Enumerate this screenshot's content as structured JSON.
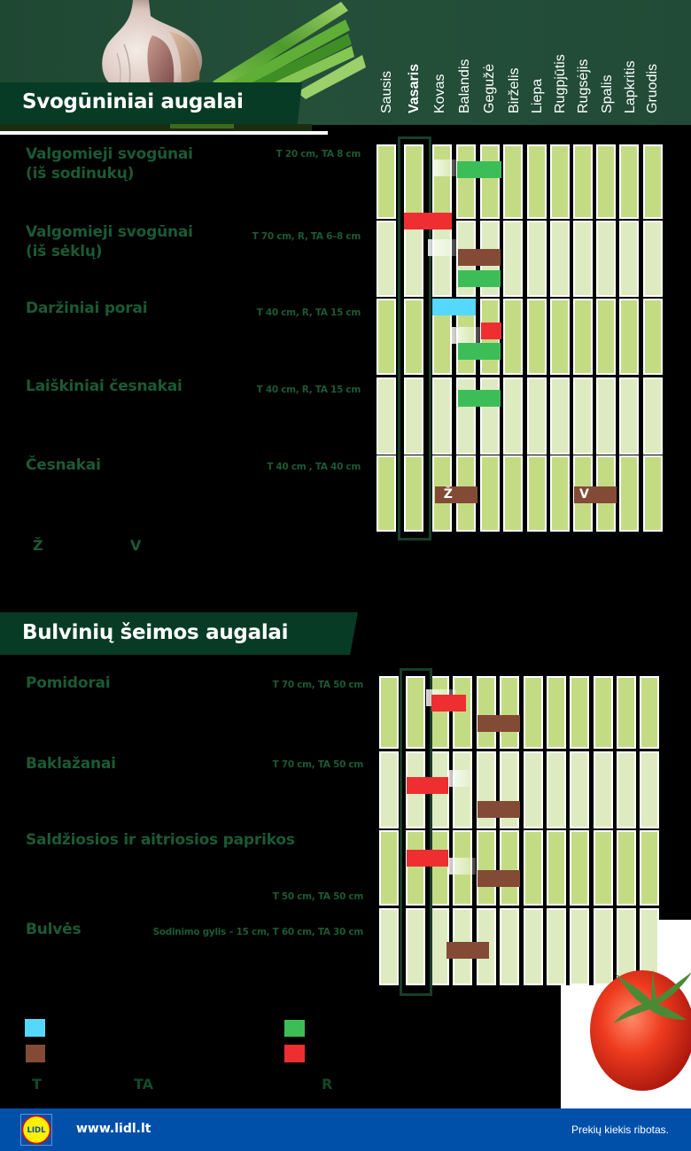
{
  "colors": {
    "header_bg": "#224c37",
    "banner_bg": "#073b25",
    "cell_dark": "#c3dc84",
    "cell_light": "#deebc0",
    "bar_green": "#3dbd58",
    "bar_red": "#ee2e31",
    "bar_brown": "#834b36",
    "bar_cyan": "#55d8fe",
    "label_green": "#1b5a34",
    "footer_bg": "#0050aa"
  },
  "header": {
    "months": [
      "Sausis",
      "Vasaris",
      "Kovas",
      "Balandis",
      "Gegužė",
      "Birželis",
      "Liepa",
      "Rugpjūtis",
      "Rugsėjis",
      "Spalis",
      "Lapkritis",
      "Gruodis"
    ],
    "highlight_month_index": 1
  },
  "section1": {
    "title": "Svogūniniai augalai",
    "rows": [
      {
        "name": "Valgomieji svogūnai",
        "name2": "(iš sodinukų)",
        "spec": "T 20 cm, TA 8 cm",
        "bars": [
          {
            "type": "ghost",
            "from": 2.0,
            "to": 3.0,
            "y": 17
          },
          {
            "type": "green",
            "from": 3.04,
            "to": 4.92,
            "y": 19
          }
        ]
      },
      {
        "name": "Valgomieji svogūnai",
        "name2": "(iš sėklų)",
        "spec": "T 70 cm, R, TA 6–8 cm",
        "bars": [
          {
            "type": "red",
            "from": 1.0,
            "to": 2.81,
            "y": -9
          },
          {
            "type": "ghost",
            "from": 1.84,
            "to": 3.0,
            "y": 21
          },
          {
            "type": "brown",
            "from": 3.07,
            "to": 4.88,
            "y": 32
          },
          {
            "type": "green",
            "from": 3.07,
            "to": 4.88,
            "y": 56
          }
        ]
      },
      {
        "name": "Daržiniai porai",
        "name2": "",
        "spec": "T 40 cm, R, TA 15 cm",
        "bars": [
          {
            "type": "cyan",
            "from": 2.0,
            "to": 3.81,
            "y": 0
          },
          {
            "type": "ghost",
            "from": 2.81,
            "to": 4.0,
            "y": 32
          },
          {
            "type": "red",
            "from": 4.04,
            "to": 4.92,
            "y": 27
          },
          {
            "type": "green",
            "from": 3.07,
            "to": 4.88,
            "y": 50
          }
        ]
      },
      {
        "name": "Laiškiniai česnakai",
        "name2": "",
        "spec": "T 40 cm, R, TA 15 cm",
        "bars": [
          {
            "type": "green",
            "from": 3.07,
            "to": 4.88,
            "y": 14
          }
        ]
      },
      {
        "name": "Česnakai",
        "name2": "",
        "spec": "T 40 cm , TA 40 cm",
        "bars": [
          {
            "type": "brown",
            "from": 2.1,
            "to": 3.89,
            "y": 35,
            "label": "Ž"
          },
          {
            "type": "brown",
            "from": 8.04,
            "to": 9.88,
            "y": 35,
            "label": "V"
          }
        ]
      }
    ],
    "letters": [
      "Ž",
      "V"
    ]
  },
  "section2": {
    "title": "Bulvinių šeimos augalai",
    "rows": [
      {
        "name": "Pomidorai",
        "name2": "",
        "spec": "T 70 cm, TA 50 cm",
        "bars": [
          {
            "type": "ghost",
            "from": 1.85,
            "to": 3.15,
            "y": 15
          },
          {
            "type": "red",
            "from": 2.07,
            "to": 3.56,
            "y": 21
          },
          {
            "type": "brown",
            "from": 4.04,
            "to": 5.85,
            "y": 44
          }
        ]
      },
      {
        "name": "Baklažanai",
        "name2": "",
        "spec": "T 70 cm, TA 50 cm",
        "bars": [
          {
            "type": "ghost",
            "from": 2.81,
            "to": 3.7,
            "y": 21
          },
          {
            "type": "red",
            "from": 1.03,
            "to": 2.81,
            "y": 29
          },
          {
            "type": "brown",
            "from": 4.04,
            "to": 5.85,
            "y": 56
          }
        ]
      },
      {
        "name": "Saldžiosios ir aitriosios paprikos",
        "name2": "",
        "spec": "T 50 cm, TA 50 cm",
        "bars": [
          {
            "type": "ghost",
            "from": 2.81,
            "to": 3.96,
            "y": 31
          },
          {
            "type": "red",
            "from": 1.03,
            "to": 2.81,
            "y": 22
          },
          {
            "type": "brown",
            "from": 4.04,
            "to": 5.85,
            "y": 45
          }
        ]
      },
      {
        "name": "Bulvės",
        "name2": "",
        "spec": "Sodinimo gylis – 15 cm, T 60 cm, TA 30 cm",
        "bars": [
          {
            "type": "brown",
            "from": 2.73,
            "to": 4.52,
            "y": 38
          }
        ]
      }
    ]
  },
  "legend": {
    "swatches": [
      "cyan",
      "brown",
      "green",
      "red"
    ],
    "abbreviations": [
      "T",
      "TA",
      "R"
    ]
  },
  "footer": {
    "logo_text": "LIDL",
    "url": "www.lidl.lt",
    "note": "Prekių kiekis ribotas."
  }
}
